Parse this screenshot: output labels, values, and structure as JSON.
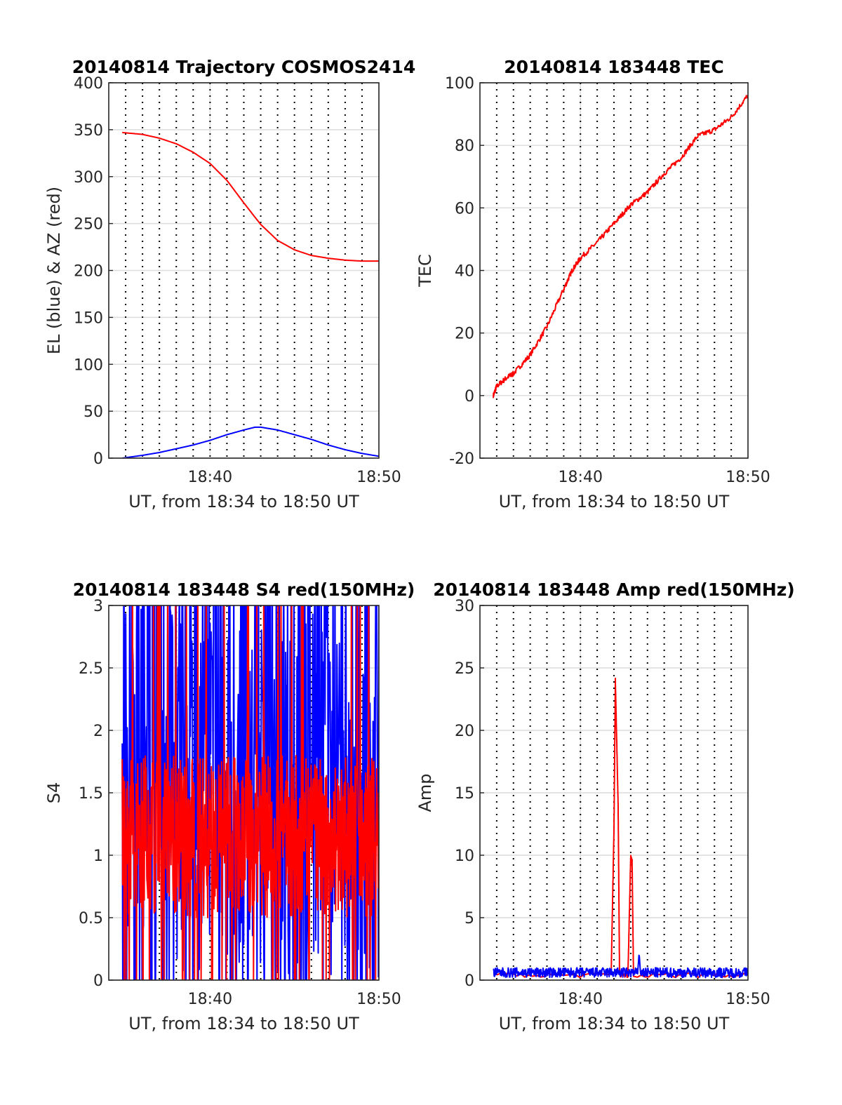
{
  "chart_data": [
    {
      "type": "line",
      "title": "20140814 Trajectory COSMOS2414",
      "xlabel": "UT, from 18:34 to 18:50 UT",
      "ylabel": "EL (blue) & AZ (red)",
      "xlim": [
        "18:34",
        "18:50"
      ],
      "ylim": [
        0,
        400
      ],
      "yticks": [
        0,
        50,
        100,
        150,
        200,
        250,
        300,
        350,
        400
      ],
      "xticks": [
        "18:40",
        "18:50"
      ],
      "grid": true,
      "series": [
        {
          "color": "#ff0000",
          "x": [
            "18:34:48",
            "18:36:00",
            "18:37:00",
            "18:38:00",
            "18:39:00",
            "18:40:00",
            "18:41:00",
            "18:42:00",
            "18:43:00",
            "18:44:00",
            "18:45:00",
            "18:46:00",
            "18:47:00",
            "18:48:00",
            "18:49:00",
            "18:50:00"
          ],
          "values": [
            347,
            345,
            341,
            335,
            326,
            314,
            296,
            272,
            249,
            232,
            222,
            216,
            213,
            211,
            210,
            210
          ]
        },
        {
          "color": "#0000ff",
          "x": [
            "18:34:48",
            "18:36:00",
            "18:37:00",
            "18:38:00",
            "18:39:00",
            "18:40:00",
            "18:41:00",
            "18:42:00",
            "18:42:40",
            "18:43:00",
            "18:44:00",
            "18:45:00",
            "18:46:00",
            "18:47:00",
            "18:48:00",
            "18:49:00",
            "18:50:00"
          ],
          "values": [
            0,
            3,
            6,
            10,
            14,
            19,
            25,
            30,
            33,
            33,
            30,
            25,
            20,
            14,
            9,
            5,
            2
          ]
        }
      ]
    },
    {
      "type": "line",
      "title": "20140814 183448 TEC",
      "xlabel": "UT, from 18:34 to 18:50 UT",
      "ylabel": "TEC",
      "xlim": [
        "18:34",
        "18:50"
      ],
      "ylim": [
        -20,
        100
      ],
      "yticks": [
        -20,
        0,
        20,
        40,
        60,
        80,
        100
      ],
      "xticks": [
        "18:40",
        "18:50"
      ],
      "grid": true,
      "series": [
        {
          "color": "#ff0000",
          "x": [
            "18:34:48",
            "18:35:00",
            "18:35:40",
            "18:36:00",
            "18:37:00",
            "18:38:00",
            "18:39:00",
            "18:39:30",
            "18:40:00",
            "18:41:00",
            "18:42:00",
            "18:43:00",
            "18:44:00",
            "18:45:00",
            "18:46:00",
            "18:47:00",
            "18:48:00",
            "18:49:00",
            "18:50:00"
          ],
          "values": [
            0,
            3,
            6,
            7,
            13,
            22,
            34,
            40,
            44,
            49,
            55,
            61,
            65,
            71,
            76,
            83,
            85,
            89,
            96
          ]
        }
      ]
    },
    {
      "type": "line",
      "title": "20140814 183448 S4 red(150MHz)",
      "xlabel": "UT, from 18:34 to 18:50 UT",
      "ylabel": "S4",
      "xlim": [
        "18:34",
        "18:50"
      ],
      "ylim": [
        0,
        3
      ],
      "yticks": [
        0,
        0.5,
        1,
        1.5,
        2,
        2.5,
        3
      ],
      "xticks": [
        "18:40",
        "18:50"
      ],
      "grid": true,
      "series": [
        {
          "color": "#0000ff",
          "x": [
            "18:34:48",
            "18:50:00"
          ],
          "values": [
            0,
            3
          ],
          "noisy_band": [
            0,
            3
          ]
        },
        {
          "color": "#ff0000",
          "x": [
            "18:34:48",
            "18:37:00",
            "18:40:00",
            "18:43:00",
            "18:45:00",
            "18:47:00",
            "18:50:00"
          ],
          "values": [
            1.2,
            1.1,
            1.0,
            1.1,
            0.9,
            0.9,
            0.9
          ],
          "noisy_band": [
            0.5,
            1.8
          ]
        }
      ]
    },
    {
      "type": "line",
      "title": "20140814 183448 Amp red(150MHz)",
      "xlabel": "UT, from 18:34 to 18:50 UT",
      "ylabel": "Amp",
      "xlim": [
        "18:34",
        "18:50"
      ],
      "ylim": [
        0,
        30
      ],
      "yticks": [
        0,
        5,
        10,
        15,
        20,
        25,
        30
      ],
      "xticks": [
        "18:40",
        "18:50"
      ],
      "grid": true,
      "series": [
        {
          "color": "#ff0000",
          "x": [
            "18:34:48",
            "18:41:50",
            "18:42:00",
            "18:42:05",
            "18:42:15",
            "18:42:20",
            "18:42:50",
            "18:43:00",
            "18:43:05",
            "18:43:10",
            "18:50:00"
          ],
          "values": [
            0.4,
            0.4,
            12,
            24,
            14,
            0.4,
            0.4,
            9.8,
            9.5,
            0.4,
            0.4
          ]
        },
        {
          "color": "#0000ff",
          "x": [
            "18:34:48",
            "18:42:00",
            "18:43:20",
            "18:43:30",
            "18:43:40",
            "18:50:00"
          ],
          "values": [
            0.5,
            0.5,
            0.6,
            2.2,
            0.5,
            0.5
          ],
          "noisy_band": [
            0.2,
            1.0
          ]
        }
      ]
    }
  ]
}
